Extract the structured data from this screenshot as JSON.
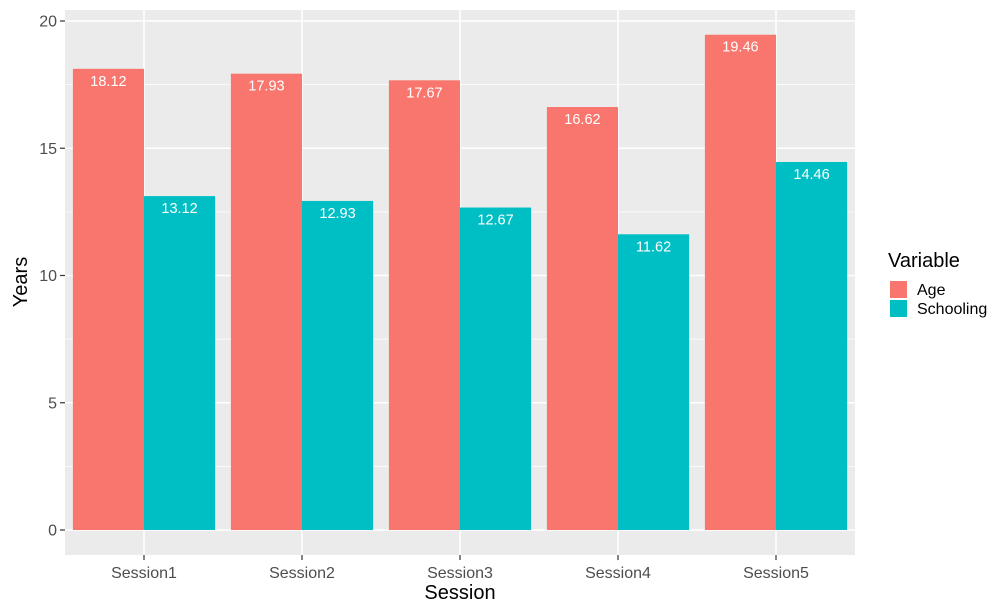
{
  "chart_data": {
    "type": "bar",
    "categories": [
      "Session1",
      "Session2",
      "Session3",
      "Session4",
      "Session5"
    ],
    "series": [
      {
        "name": "Age",
        "values": [
          18.12,
          17.93,
          17.67,
          16.62,
          19.46
        ],
        "color": "#F8766D"
      },
      {
        "name": "Schooling",
        "values": [
          13.12,
          12.93,
          12.67,
          11.62,
          14.46
        ],
        "color": "#00BFC4"
      }
    ],
    "data_labels": {
      "Age": [
        "18.12",
        "17.93",
        "17.67",
        "16.62",
        "19.46"
      ],
      "Schooling": [
        "13.12",
        "12.93",
        "12.67",
        "11.62",
        "14.46"
      ]
    },
    "xlabel": "Session",
    "ylabel": "Years",
    "ylim": [
      0,
      20
    ],
    "yticks": [
      0,
      5,
      10,
      15,
      20
    ],
    "ytick_labels": [
      "0",
      "5",
      "10",
      "15",
      "20"
    ],
    "legend": {
      "title": "Variable",
      "position": "right"
    },
    "grid": true,
    "panel_background": "#EBEBEB"
  }
}
